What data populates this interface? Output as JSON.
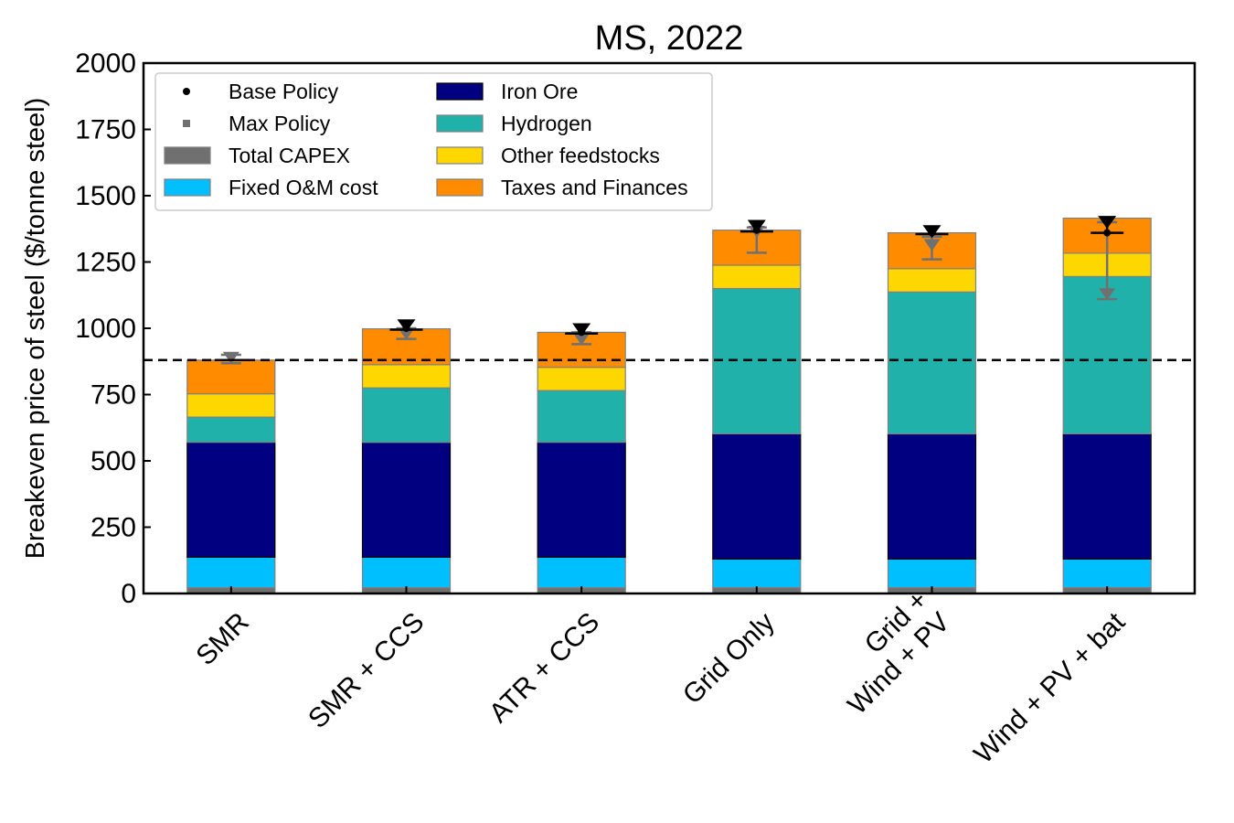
{
  "chart_data": {
    "type": "bar",
    "stacked": true,
    "title": "MS, 2022",
    "xlabel": "",
    "ylabel": "Breakeven price of steel ($/tonne steel)",
    "ylim": [
      0,
      2000
    ],
    "yticks": [
      0,
      250,
      500,
      750,
      1000,
      1250,
      1500,
      1750,
      2000
    ],
    "grid": false,
    "legend_position": "top-left",
    "categories": [
      [
        "SMR"
      ],
      [
        "SMR + CCS"
      ],
      [
        "ATR + CCS"
      ],
      [
        "Grid Only"
      ],
      [
        "Grid +",
        "Wind + PV"
      ],
      [
        "Wind + PV + bat"
      ]
    ],
    "series": [
      {
        "name": "Total CAPEX",
        "color": "#707070",
        "values": [
          22,
          22,
          22,
          22,
          22,
          22
        ]
      },
      {
        "name": "Fixed O&M cost",
        "color": "#00bfff",
        "values": [
          115,
          115,
          115,
          108,
          108,
          108
        ]
      },
      {
        "name": "Iron Ore",
        "color": "#000080",
        "values": [
          433,
          433,
          433,
          472,
          472,
          472
        ]
      },
      {
        "name": "Hydrogen",
        "color": "#20b2aa",
        "values": [
          95,
          205,
          195,
          548,
          535,
          593
        ]
      },
      {
        "name": "Other feedstocks",
        "color": "#ffd700",
        "values": [
          88,
          88,
          88,
          88,
          88,
          88
        ]
      },
      {
        "name": "Taxes and Finances",
        "color": "#ff8c00",
        "values": [
          127,
          135,
          132,
          132,
          135,
          132
        ]
      }
    ],
    "reference_line": {
      "value": 880,
      "style": "dashed",
      "color": "#000000"
    },
    "policy_markers": [
      {
        "name": "Base Policy",
        "color": "#000000",
        "values": [
          880,
          1000,
          985,
          1370,
          1360,
          1360
        ],
        "error_top": [
          880,
          1020,
          1005,
          1395,
          1375,
          1410
        ],
        "error_bottom": [
          880,
          995,
          980,
          1365,
          1355,
          1360
        ]
      },
      {
        "name": "Max Policy",
        "color": "#707070",
        "values": [
          880,
          970,
          950,
          1355,
          1305,
          1120
        ],
        "error_top": [
          900,
          1000,
          985,
          1380,
          1345,
          1400
        ],
        "error_bottom": [
          868,
          960,
          940,
          1285,
          1260,
          1110
        ]
      }
    ],
    "legend": [
      {
        "label": "Base Policy",
        "kind": "dot",
        "color": "#000000"
      },
      {
        "label": "Max Policy",
        "kind": "square",
        "color": "#707070"
      },
      {
        "label": "Total CAPEX",
        "kind": "patch",
        "color": "#707070"
      },
      {
        "label": "Fixed O&M cost",
        "kind": "patch",
        "color": "#00bfff"
      },
      {
        "label": "Iron Ore",
        "kind": "patch",
        "color": "#000080"
      },
      {
        "label": "Hydrogen",
        "kind": "patch",
        "color": "#20b2aa"
      },
      {
        "label": "Other feedstocks",
        "kind": "patch",
        "color": "#ffd700"
      },
      {
        "label": "Taxes and Finances",
        "kind": "patch",
        "color": "#ff8c00"
      }
    ]
  }
}
